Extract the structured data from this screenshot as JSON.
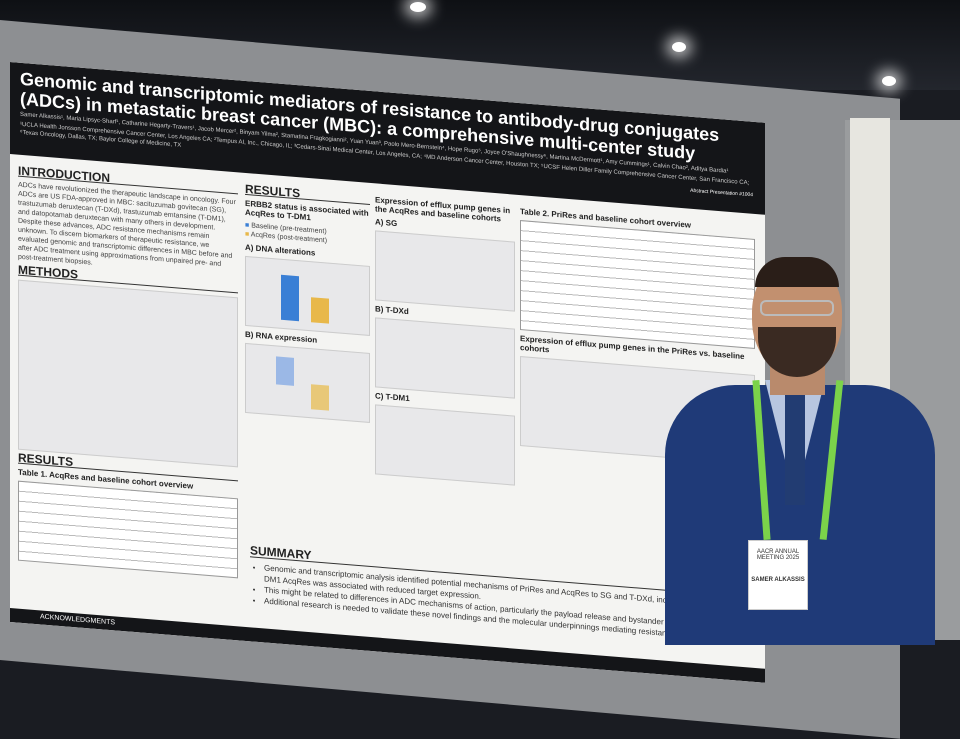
{
  "poster": {
    "title": "Genomic and transcriptomic mediators of resistance to antibody-drug conjugates (ADCs) in metastatic breast cancer (MBC): a comprehensive multi-center study",
    "authors": "Samer Alkassis¹, Maria Lipsyc-Sharf¹, Catharine Hegarty-Travers¹, Jacob Mercer², Binyam Yilma², Stamatina Fragkogianni², Yuan Yuan³, Paolo Mero-Bernstein⁴, Hope Rugo⁵, Joyce O'Shaughnessy⁶, Martina McDermott¹, Amy Cummings¹, Calvin Chao², Aditya Bardia¹",
    "affiliations": "¹UCLA Health Jonsson Comprehensive Cancer Center, Los Angeles CA; ²Tempus AI, Inc., Chicago, IL; ³Cedars-Sinai Medical Center, Los Angeles, CA; ⁴MD Anderson Cancer Center, Houston TX; ⁵UCSF Helen Diller Family Comprehensive Cancer Center, San Francisco CA; ⁶Texas Oncology, Dallas, TX; Baylor College of Medicine, TX",
    "abstract_label": "Abstract Presentation #1004",
    "introduction_heading": "INTRODUCTION",
    "introduction_text": "ADCs have revolutionized the therapeutic landscape in oncology. Four ADCs are US FDA-approved in MBC: sacituzumab govitecan (SG), trastuzumab deruxtecan (T-DXd), trastuzumab emtansine (T-DM1), and datopotamab deruxtecan with many others in development. Despite these advances, ADC resistance mechanisms remain unknown. To discern biomarkers of therapeutic resistance, we evaluated genomic and transcriptomic differences in MBC before and after ADC treatment using approximations from unpaired pre- and post-treatment biopsies.",
    "methods_heading": "METHODS",
    "results_heading_left": "RESULTS",
    "table1_title": "Table 1. AcqRes and baseline cohort overview",
    "results_heading": "RESULTS",
    "erbb2_title": "ERBB2 status is associated with AcqRes to T-DM1",
    "legend_baseline": "Baseline (pre-treatment)",
    "legend_acqres": "AcqRes (post-treatment)",
    "panel_a": "A) DNA alterations",
    "panel_b": "B) RNA expression",
    "efflux_title": "Expression of efflux pump genes in the AcqRes and baseline cohorts",
    "panel_sg": "A) SG",
    "panel_tdxd": "B) T-DXd",
    "panel_tdm1": "C) T-DM1",
    "table2_title": "Table 2. PriRes and baseline cohort overview",
    "efflux_prires_title": "Expression of efflux pump genes in the PriRes vs. baseline cohorts",
    "summary_heading": "SUMMARY",
    "summary_items": [
      "Genomic and transcriptomic analysis identified potential mechanisms of PriRes and AcqRes to SG and T-DXd, including ... expression. T-DM1 AcqRes was associated with reduced target expression.",
      "This might be related to differences in ADC mechanisms of action, particularly the payload release and bystander effect ... T-DM1.",
      "Additional research is needed to validate these novel findings and the molecular underpinnings mediating resistance to ..."
    ],
    "acknowledgments": "ACKNOWLEDGMENTS"
  },
  "badge": {
    "text": "AACR ANNUAL MEETING 2025",
    "name": "SAMER ALKASSIS"
  },
  "colors": {
    "baseline": "#3a7fd5",
    "acqres": "#e8b84a",
    "suit": "#1f3a78",
    "lanyard": "#7bd34a",
    "header": "#141518"
  }
}
